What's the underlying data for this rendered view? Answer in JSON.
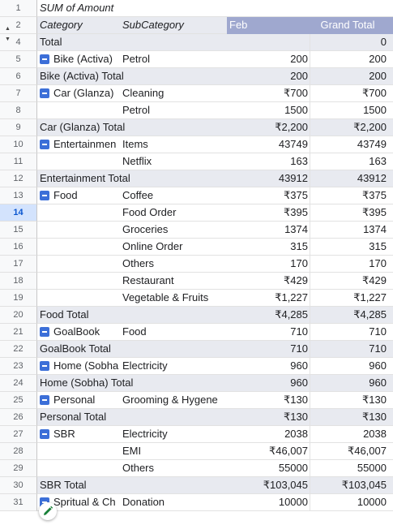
{
  "header_rows": {
    "r1": {
      "num": "1",
      "label": "SUM of Amount"
    },
    "r2": {
      "num": "2",
      "category": "Category",
      "subcategory": "SubCategory",
      "feb": "Feb",
      "grand_total": "Grand Total"
    }
  },
  "rows": [
    {
      "num": "4",
      "type": "total",
      "cat": "Total",
      "sub": "",
      "feb": "",
      "gt": "0",
      "toggle": false
    },
    {
      "num": "5",
      "type": "data",
      "cat": "Bike (Activa)",
      "sub": "Petrol",
      "feb": "200",
      "gt": "200",
      "toggle": true
    },
    {
      "num": "6",
      "type": "total",
      "cat": "Bike (Activa) Total",
      "sub": "",
      "feb": "200",
      "gt": "200",
      "toggle": false
    },
    {
      "num": "7",
      "type": "data",
      "cat": "Car (Glanza)",
      "sub": "Cleaning",
      "feb": "₹700",
      "gt": "₹700",
      "toggle": true
    },
    {
      "num": "8",
      "type": "data",
      "cat": "",
      "sub": "Petrol",
      "feb": "1500",
      "gt": "1500",
      "toggle": false
    },
    {
      "num": "9",
      "type": "total",
      "cat": "Car (Glanza) Total",
      "sub": "",
      "feb": "₹2,200",
      "gt": "₹2,200",
      "toggle": false
    },
    {
      "num": "10",
      "type": "data",
      "cat": "Entertainmen",
      "sub": "Items",
      "feb": "43749",
      "gt": "43749",
      "toggle": true
    },
    {
      "num": "11",
      "type": "data",
      "cat": "",
      "sub": "Netflix",
      "feb": "163",
      "gt": "163",
      "toggle": false
    },
    {
      "num": "12",
      "type": "total",
      "cat": "Entertainment Total",
      "sub": "",
      "feb": "43912",
      "gt": "43912",
      "toggle": false
    },
    {
      "num": "13",
      "type": "data",
      "cat": "Food",
      "sub": "Coffee",
      "feb": "₹375",
      "gt": "₹375",
      "toggle": true
    },
    {
      "num": "14",
      "type": "data",
      "cat": "",
      "sub": "Food Order",
      "feb": "₹395",
      "gt": "₹395",
      "toggle": false,
      "selected": true
    },
    {
      "num": "15",
      "type": "data",
      "cat": "",
      "sub": "Groceries",
      "feb": "1374",
      "gt": "1374",
      "toggle": false
    },
    {
      "num": "16",
      "type": "data",
      "cat": "",
      "sub": "Online Order",
      "feb": "315",
      "gt": "315",
      "toggle": false
    },
    {
      "num": "17",
      "type": "data",
      "cat": "",
      "sub": "Others",
      "feb": "170",
      "gt": "170",
      "toggle": false
    },
    {
      "num": "18",
      "type": "data",
      "cat": "",
      "sub": "Restaurant",
      "feb": "₹429",
      "gt": "₹429",
      "toggle": false
    },
    {
      "num": "19",
      "type": "data",
      "cat": "",
      "sub": "Vegetable & Fruits",
      "feb": "₹1,227",
      "gt": "₹1,227",
      "toggle": false
    },
    {
      "num": "20",
      "type": "total",
      "cat": "Food Total",
      "sub": "",
      "feb": "₹4,285",
      "gt": "₹4,285",
      "toggle": false
    },
    {
      "num": "21",
      "type": "data",
      "cat": "GoalBook",
      "sub": "Food",
      "feb": "710",
      "gt": "710",
      "toggle": true
    },
    {
      "num": "22",
      "type": "total",
      "cat": "GoalBook Total",
      "sub": "",
      "feb": "710",
      "gt": "710",
      "toggle": false
    },
    {
      "num": "23",
      "type": "data",
      "cat": "Home (Sobha",
      "sub": "Electricity",
      "feb": "960",
      "gt": "960",
      "toggle": true
    },
    {
      "num": "24",
      "type": "total",
      "cat": "Home (Sobha) Total",
      "sub": "",
      "feb": "960",
      "gt": "960",
      "toggle": false
    },
    {
      "num": "25",
      "type": "data",
      "cat": "Personal",
      "sub": "Grooming & Hygene",
      "feb": "₹130",
      "gt": "₹130",
      "toggle": true
    },
    {
      "num": "26",
      "type": "total",
      "cat": "Personal Total",
      "sub": "",
      "feb": "₹130",
      "gt": "₹130",
      "toggle": false
    },
    {
      "num": "27",
      "type": "data",
      "cat": "SBR",
      "sub": "Electricity",
      "feb": "2038",
      "gt": "2038",
      "toggle": true
    },
    {
      "num": "28",
      "type": "data",
      "cat": "",
      "sub": "EMI",
      "feb": "₹46,007",
      "gt": "₹46,007",
      "toggle": false
    },
    {
      "num": "29",
      "type": "data",
      "cat": "",
      "sub": "Others",
      "feb": "55000",
      "gt": "55000",
      "toggle": false
    },
    {
      "num": "30",
      "type": "total",
      "cat": "SBR Total",
      "sub": "",
      "feb": "₹103,045",
      "gt": "₹103,045",
      "toggle": false
    },
    {
      "num": "31",
      "type": "data",
      "cat": "Spritual & Ch",
      "sub": "Donation",
      "feb": "10000",
      "gt": "10000",
      "toggle": true
    }
  ],
  "colors": {
    "header_blue": "#9fa8cf",
    "total_row": "#e8eaf0",
    "toggle_blue": "#3c6fd8"
  },
  "icons": {
    "edit": "pencil-icon",
    "collapse": "minus-box-icon"
  }
}
